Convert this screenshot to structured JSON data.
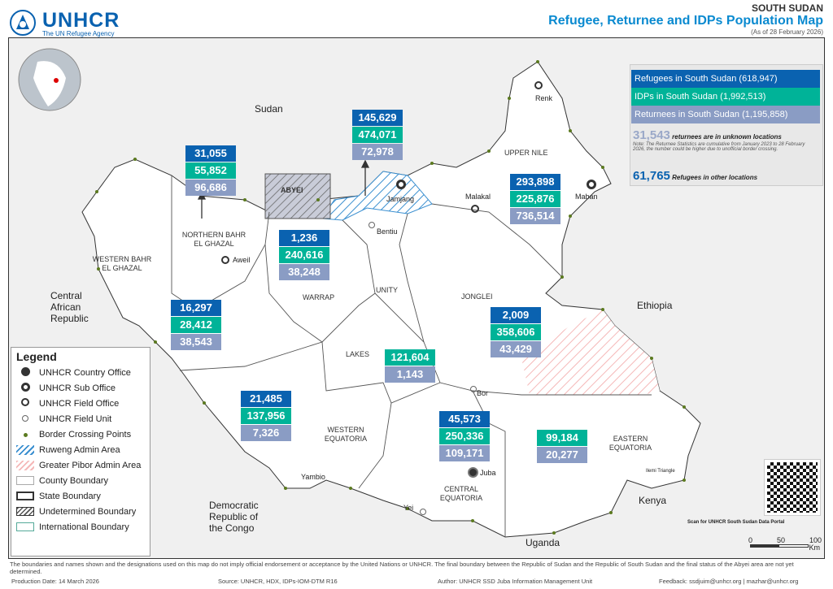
{
  "header": {
    "org": "UNHCR",
    "tagline": "The UN Refugee Agency",
    "country": "SOUTH SUDAN",
    "title": "Refugee, Returnee and IDPs Population Map",
    "date": "(As of 28 February 2026)"
  },
  "colors": {
    "refugees": "#0a62b0",
    "idps": "#00b398",
    "returnees": "#8a9cc4",
    "brand": "#0a62b0"
  },
  "summary": {
    "refugees": "Refugees in South Sudan  (618,947)",
    "idps": "IDPs in South Sudan      (1,992,513)",
    "returnees": "Returnees  in South Sudan (1,195,858)",
    "unknown_value": "31,543",
    "unknown_text": "returnees are in unknown locations",
    "note": "Note: The Returnee Statistics are cumulative from January 2023 to 28 February 2026, the number could be higher due to unofficial border crossing.",
    "other_value": "61,765",
    "other_text": "Refugees in other locations"
  },
  "stats": [
    {
      "region": "Northern Bahr el Ghazal",
      "refugees": "31,055",
      "idps": "55,852",
      "returnees": "96,686"
    },
    {
      "region": "Ruweng",
      "refugees": "145,629",
      "idps": "474,071",
      "returnees": "72,978"
    },
    {
      "region": "Warrap",
      "refugees": "1,236",
      "idps": "240,616",
      "returnees": "38,248"
    },
    {
      "region": "Western Bahr el Ghazal",
      "refugees": "16,297",
      "idps": "28,412",
      "returnees": "38,543"
    },
    {
      "region": "Upper Nile",
      "refugees": "293,898",
      "idps": "225,876",
      "returnees": "736,514"
    },
    {
      "region": "Jonglei",
      "refugees": "2,009",
      "idps": "358,606",
      "returnees": "43,429"
    },
    {
      "region": "Lakes",
      "idps": "121,604",
      "returnees": "1,143"
    },
    {
      "region": "Western Equatoria",
      "refugees": "21,485",
      "idps": "137,956",
      "returnees": "7,326"
    },
    {
      "region": "Central Equatoria",
      "refugees": "45,573",
      "idps": "250,336",
      "returnees": "109,171"
    },
    {
      "region": "Eastern Equatoria",
      "idps": "99,184",
      "returnees": "20,277"
    }
  ],
  "countries": {
    "sudan": "Sudan",
    "ethiopia": "Ethiopia",
    "car": "Central African Republic",
    "kenya": "Kenya",
    "uganda": "Uganda",
    "drc": "Democratic Republic of the Congo"
  },
  "states": {
    "upper_nile": "UPPER NILE",
    "nbeg": "NORTHERN BAHR EL GHAZAL",
    "wbeg": "WESTERN BAHR EL GHAZAL",
    "warrap": "WARRAP",
    "unity": "UNITY",
    "jonglei": "JONGLEI",
    "lakes": "LAKES",
    "weq": "WESTERN EQUATORIA",
    "ceq": "CENTRAL EQUATORIA",
    "eeq": "EASTERN EQUATORIA",
    "abyei": "ABYEI"
  },
  "cities": {
    "renk": "Renk",
    "malakal": "Malakal",
    "maban": "Maban",
    "jamjang": "Jamjang",
    "bentiu": "Bentiu",
    "aweil": "Aweil",
    "bor": "Bor",
    "juba": "Juba",
    "yei": "Yei",
    "yambio": "Yambio",
    "ilemi": "Ilemi Triangle"
  },
  "legend": {
    "title": "Legend",
    "items": [
      "UNHCR Country Office",
      "UNHCR Sub Office",
      "UNHCR Field Office",
      "UNHCR Field Unit",
      "Border Crossing Points",
      "Ruweng Admin Area",
      "Greater Pibor Admin Area",
      "County Boundary",
      "State Boundary",
      "Undetermined Boundary",
      "International Boundary"
    ]
  },
  "scale": {
    "ticks": [
      "0",
      "50",
      "100"
    ],
    "unit": "Km"
  },
  "qr_caption": "Scan for UNHCR South Sudan Data Portal",
  "footer": {
    "disclaimer": "The boundaries and names shown and the designations used on this map do not imply official endorsement or acceptance by the United Nations or UNHCR. The final boundary between the Republic of Sudan and the Republic of South Sudan and the final status of the Abyei area are not yet determined.",
    "production": "Production Date: 14 March 2026",
    "source": "Source: UNHCR, HDX, IDPs-IOM-DTM R16",
    "author": "Author: UNHCR SSD Juba Information Management Unit",
    "feedback": "Feedback: ssdjuim@unhcr.org | mazhar@unhcr.org"
  }
}
